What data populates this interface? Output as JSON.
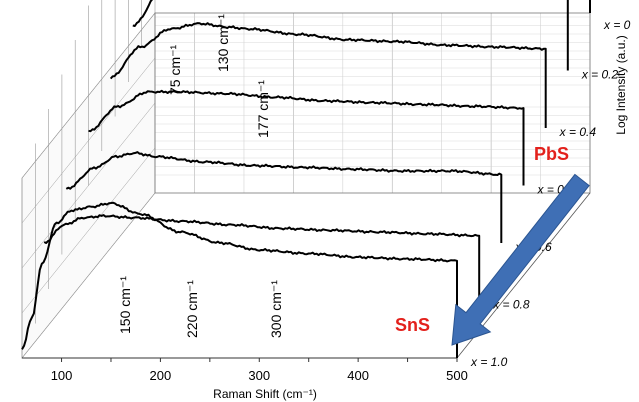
{
  "chart_data": {
    "type": "line",
    "style": "3d-waterfall",
    "xlabel": "Raman Shift (cm⁻¹)",
    "ylabel": "Log Intensity (a.u.)",
    "xlim": [
      60,
      500
    ],
    "x_ticks": [
      "100",
      "200",
      "300",
      "400",
      "500"
    ],
    "y_scale": "log",
    "grid": true,
    "series_labels": [
      "x = 0",
      "x = 0.2",
      "x = 0.4",
      "x = 0.5",
      "x = 0.6",
      "x = 0.8",
      "x = 1.0"
    ],
    "peak_annotations_top": [
      "75 cm⁻¹",
      "130 cm⁻¹",
      "177 cm⁻¹"
    ],
    "peak_annotations_bottom": [
      "150 cm⁻¹",
      "220 cm⁻¹",
      "300 cm⁻¹"
    ],
    "end_labels": {
      "top": "PbS",
      "bottom": "SnS"
    },
    "arrow_color": "#3f6fb5",
    "tag_color": "#e3211c",
    "series": [
      {
        "name": "x = 0",
        "x": [
          60,
          80,
          100,
          120,
          130,
          150,
          177,
          200,
          250,
          300,
          350,
          400,
          450,
          500
        ],
        "y": [
          0.22,
          0.55,
          0.7,
          0.78,
          1.0,
          0.72,
          0.58,
          0.54,
          0.52,
          0.51,
          0.52,
          0.51,
          0.53,
          0.47
        ]
      },
      {
        "name": "x = 0.2",
        "x": [
          60,
          90,
          120,
          140,
          150,
          170,
          200,
          250,
          300,
          350,
          400,
          430,
          450,
          500
        ],
        "y": [
          0.25,
          0.45,
          0.62,
          0.72,
          0.86,
          0.7,
          0.62,
          0.58,
          0.55,
          0.53,
          0.52,
          0.55,
          0.52,
          0.5
        ]
      },
      {
        "name": "x = 0.4",
        "x": [
          60,
          90,
          120,
          150,
          180,
          200,
          250,
          300,
          350,
          400,
          450,
          500
        ],
        "y": [
          0.28,
          0.45,
          0.55,
          0.58,
          0.56,
          0.55,
          0.52,
          0.49,
          0.48,
          0.46,
          0.45,
          0.44
        ]
      },
      {
        "name": "x = 0.5",
        "x": [
          60,
          90,
          120,
          150,
          200,
          250,
          300,
          350,
          400,
          450,
          500
        ],
        "y": [
          0.3,
          0.44,
          0.52,
          0.52,
          0.51,
          0.49,
          0.47,
          0.46,
          0.45,
          0.44,
          0.43
        ]
      },
      {
        "name": "x = 0.6",
        "x": [
          60,
          90,
          110,
          130,
          150,
          200,
          250,
          300,
          350,
          400,
          450,
          500
        ],
        "y": [
          0.3,
          0.42,
          0.48,
          0.5,
          0.48,
          0.45,
          0.43,
          0.42,
          0.41,
          0.4,
          0.4,
          0.38
        ]
      },
      {
        "name": "x = 0.8",
        "x": [
          60,
          80,
          100,
          120,
          150,
          200,
          250,
          300,
          350,
          400,
          450,
          500
        ],
        "y": [
          0.32,
          0.42,
          0.46,
          0.47,
          0.46,
          0.44,
          0.42,
          0.4,
          0.39,
          0.38,
          0.37,
          0.36
        ]
      },
      {
        "name": "x = 1.0",
        "x": [
          60,
          70,
          80,
          95,
          110,
          130,
          150,
          180,
          220,
          260,
          300,
          350,
          400,
          450,
          500
        ],
        "y": [
          0.05,
          0.22,
          0.52,
          0.75,
          0.82,
          0.84,
          0.86,
          0.8,
          0.7,
          0.64,
          0.6,
          0.58,
          0.56,
          0.55,
          0.54
        ]
      }
    ]
  }
}
